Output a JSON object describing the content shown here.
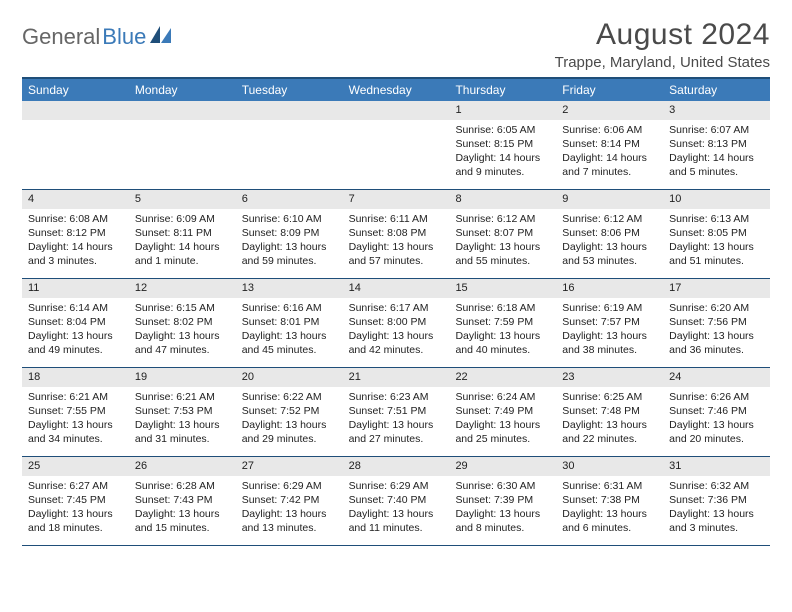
{
  "logo": {
    "text_gray": "General",
    "text_blue": "Blue"
  },
  "header": {
    "month_title": "August 2024",
    "location": "Trappe, Maryland, United States"
  },
  "colors": {
    "header_bg": "#3b7ab8",
    "header_border": "#1f4e79",
    "daynum_bg": "#e8e8e8",
    "text": "#222222",
    "logo_gray": "#666666",
    "logo_blue": "#3b7ab8"
  },
  "weekdays": [
    "Sunday",
    "Monday",
    "Tuesday",
    "Wednesday",
    "Thursday",
    "Friday",
    "Saturday"
  ],
  "weeks": [
    [
      null,
      null,
      null,
      null,
      {
        "num": "1",
        "sunrise": "Sunrise: 6:05 AM",
        "sunset": "Sunset: 8:15 PM",
        "daylight": "Daylight: 14 hours and 9 minutes."
      },
      {
        "num": "2",
        "sunrise": "Sunrise: 6:06 AM",
        "sunset": "Sunset: 8:14 PM",
        "daylight": "Daylight: 14 hours and 7 minutes."
      },
      {
        "num": "3",
        "sunrise": "Sunrise: 6:07 AM",
        "sunset": "Sunset: 8:13 PM",
        "daylight": "Daylight: 14 hours and 5 minutes."
      }
    ],
    [
      {
        "num": "4",
        "sunrise": "Sunrise: 6:08 AM",
        "sunset": "Sunset: 8:12 PM",
        "daylight": "Daylight: 14 hours and 3 minutes."
      },
      {
        "num": "5",
        "sunrise": "Sunrise: 6:09 AM",
        "sunset": "Sunset: 8:11 PM",
        "daylight": "Daylight: 14 hours and 1 minute."
      },
      {
        "num": "6",
        "sunrise": "Sunrise: 6:10 AM",
        "sunset": "Sunset: 8:09 PM",
        "daylight": "Daylight: 13 hours and 59 minutes."
      },
      {
        "num": "7",
        "sunrise": "Sunrise: 6:11 AM",
        "sunset": "Sunset: 8:08 PM",
        "daylight": "Daylight: 13 hours and 57 minutes."
      },
      {
        "num": "8",
        "sunrise": "Sunrise: 6:12 AM",
        "sunset": "Sunset: 8:07 PM",
        "daylight": "Daylight: 13 hours and 55 minutes."
      },
      {
        "num": "9",
        "sunrise": "Sunrise: 6:12 AM",
        "sunset": "Sunset: 8:06 PM",
        "daylight": "Daylight: 13 hours and 53 minutes."
      },
      {
        "num": "10",
        "sunrise": "Sunrise: 6:13 AM",
        "sunset": "Sunset: 8:05 PM",
        "daylight": "Daylight: 13 hours and 51 minutes."
      }
    ],
    [
      {
        "num": "11",
        "sunrise": "Sunrise: 6:14 AM",
        "sunset": "Sunset: 8:04 PM",
        "daylight": "Daylight: 13 hours and 49 minutes."
      },
      {
        "num": "12",
        "sunrise": "Sunrise: 6:15 AM",
        "sunset": "Sunset: 8:02 PM",
        "daylight": "Daylight: 13 hours and 47 minutes."
      },
      {
        "num": "13",
        "sunrise": "Sunrise: 6:16 AM",
        "sunset": "Sunset: 8:01 PM",
        "daylight": "Daylight: 13 hours and 45 minutes."
      },
      {
        "num": "14",
        "sunrise": "Sunrise: 6:17 AM",
        "sunset": "Sunset: 8:00 PM",
        "daylight": "Daylight: 13 hours and 42 minutes."
      },
      {
        "num": "15",
        "sunrise": "Sunrise: 6:18 AM",
        "sunset": "Sunset: 7:59 PM",
        "daylight": "Daylight: 13 hours and 40 minutes."
      },
      {
        "num": "16",
        "sunrise": "Sunrise: 6:19 AM",
        "sunset": "Sunset: 7:57 PM",
        "daylight": "Daylight: 13 hours and 38 minutes."
      },
      {
        "num": "17",
        "sunrise": "Sunrise: 6:20 AM",
        "sunset": "Sunset: 7:56 PM",
        "daylight": "Daylight: 13 hours and 36 minutes."
      }
    ],
    [
      {
        "num": "18",
        "sunrise": "Sunrise: 6:21 AM",
        "sunset": "Sunset: 7:55 PM",
        "daylight": "Daylight: 13 hours and 34 minutes."
      },
      {
        "num": "19",
        "sunrise": "Sunrise: 6:21 AM",
        "sunset": "Sunset: 7:53 PM",
        "daylight": "Daylight: 13 hours and 31 minutes."
      },
      {
        "num": "20",
        "sunrise": "Sunrise: 6:22 AM",
        "sunset": "Sunset: 7:52 PM",
        "daylight": "Daylight: 13 hours and 29 minutes."
      },
      {
        "num": "21",
        "sunrise": "Sunrise: 6:23 AM",
        "sunset": "Sunset: 7:51 PM",
        "daylight": "Daylight: 13 hours and 27 minutes."
      },
      {
        "num": "22",
        "sunrise": "Sunrise: 6:24 AM",
        "sunset": "Sunset: 7:49 PM",
        "daylight": "Daylight: 13 hours and 25 minutes."
      },
      {
        "num": "23",
        "sunrise": "Sunrise: 6:25 AM",
        "sunset": "Sunset: 7:48 PM",
        "daylight": "Daylight: 13 hours and 22 minutes."
      },
      {
        "num": "24",
        "sunrise": "Sunrise: 6:26 AM",
        "sunset": "Sunset: 7:46 PM",
        "daylight": "Daylight: 13 hours and 20 minutes."
      }
    ],
    [
      {
        "num": "25",
        "sunrise": "Sunrise: 6:27 AM",
        "sunset": "Sunset: 7:45 PM",
        "daylight": "Daylight: 13 hours and 18 minutes."
      },
      {
        "num": "26",
        "sunrise": "Sunrise: 6:28 AM",
        "sunset": "Sunset: 7:43 PM",
        "daylight": "Daylight: 13 hours and 15 minutes."
      },
      {
        "num": "27",
        "sunrise": "Sunrise: 6:29 AM",
        "sunset": "Sunset: 7:42 PM",
        "daylight": "Daylight: 13 hours and 13 minutes."
      },
      {
        "num": "28",
        "sunrise": "Sunrise: 6:29 AM",
        "sunset": "Sunset: 7:40 PM",
        "daylight": "Daylight: 13 hours and 11 minutes."
      },
      {
        "num": "29",
        "sunrise": "Sunrise: 6:30 AM",
        "sunset": "Sunset: 7:39 PM",
        "daylight": "Daylight: 13 hours and 8 minutes."
      },
      {
        "num": "30",
        "sunrise": "Sunrise: 6:31 AM",
        "sunset": "Sunset: 7:38 PM",
        "daylight": "Daylight: 13 hours and 6 minutes."
      },
      {
        "num": "31",
        "sunrise": "Sunrise: 6:32 AM",
        "sunset": "Sunset: 7:36 PM",
        "daylight": "Daylight: 13 hours and 3 minutes."
      }
    ]
  ]
}
